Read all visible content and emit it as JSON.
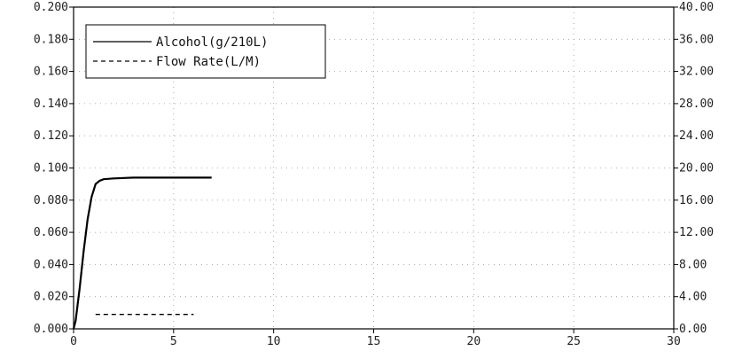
{
  "chart_data": {
    "type": "line",
    "grid": true,
    "legend_placement": "top-left",
    "x_axis": {
      "range": [
        0,
        30
      ],
      "ticks": [
        "0",
        "5",
        "10",
        "15",
        "20",
        "25",
        "30"
      ]
    },
    "y_left": {
      "range": [
        0,
        0.2
      ],
      "ticks": [
        "0.000",
        "0.020",
        "0.040",
        "0.060",
        "0.080",
        "0.100",
        "0.120",
        "0.140",
        "0.160",
        "0.180",
        "0.200"
      ]
    },
    "y_right": {
      "range": [
        0,
        40
      ],
      "ticks": [
        "0.00",
        "4.00",
        "8.00",
        "12.00",
        "16.00",
        "20.00",
        "24.00",
        "28.00",
        "32.00",
        "36.00",
        "40.00"
      ]
    },
    "series": [
      {
        "name": "Alcohol(g/210L)",
        "axis": "left",
        "style": "solid",
        "x": [
          0,
          0.1,
          0.3,
          0.5,
          0.7,
          0.9,
          1.1,
          1.3,
          1.5,
          2.0,
          3.0,
          4.0,
          5.0,
          6.0,
          6.9
        ],
        "y": [
          0,
          0.005,
          0.025,
          0.048,
          0.068,
          0.082,
          0.09,
          0.092,
          0.093,
          0.0935,
          0.094,
          0.094,
          0.094,
          0.094,
          0.094
        ]
      },
      {
        "name": "Flow Rate(L/M)",
        "axis": "right",
        "style": "dashed",
        "x": [
          1.1,
          6.0
        ],
        "y": [
          1.8,
          1.8
        ]
      }
    ]
  }
}
